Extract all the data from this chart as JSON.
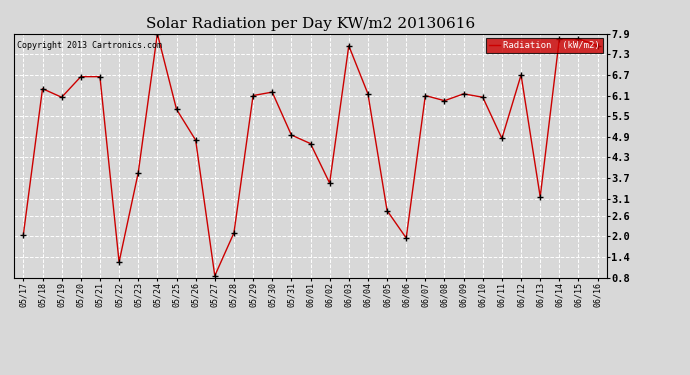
{
  "title": "Solar Radiation per Day KW/m2 20130616",
  "copyright": "Copyright 2013 Cartronics.com",
  "legend_label": "Radiation  (kW/m2)",
  "x_labels": [
    "05/17",
    "05/18",
    "05/19",
    "05/20",
    "05/21",
    "05/22",
    "05/23",
    "05/24",
    "05/25",
    "05/26",
    "05/27",
    "05/28",
    "05/29",
    "05/30",
    "05/31",
    "06/01",
    "06/02",
    "06/03",
    "06/04",
    "06/05",
    "06/06",
    "06/07",
    "06/08",
    "06/09",
    "06/10",
    "06/11",
    "06/12",
    "06/13",
    "06/14",
    "06/15",
    "06/16"
  ],
  "y_values": [
    2.05,
    6.3,
    6.05,
    6.65,
    6.65,
    1.25,
    3.85,
    7.9,
    5.7,
    4.8,
    0.85,
    2.1,
    6.1,
    6.2,
    4.95,
    4.7,
    3.55,
    7.55,
    6.15,
    2.75,
    1.95,
    6.1,
    5.95,
    6.15,
    6.05,
    4.85,
    6.7,
    3.15,
    7.75,
    7.75,
    7.55
  ],
  "line_color": "#cc0000",
  "marker_color": "black",
  "bg_color": "#d8d8d8",
  "grid_color": "#ffffff",
  "y_ticks": [
    0.8,
    1.4,
    2.0,
    2.6,
    3.1,
    3.7,
    4.3,
    4.9,
    5.5,
    6.1,
    6.7,
    7.3,
    7.9
  ],
  "ylim": [
    0.8,
    7.9
  ],
  "legend_bg": "#cc0000",
  "legend_text_color": "#ffffff"
}
